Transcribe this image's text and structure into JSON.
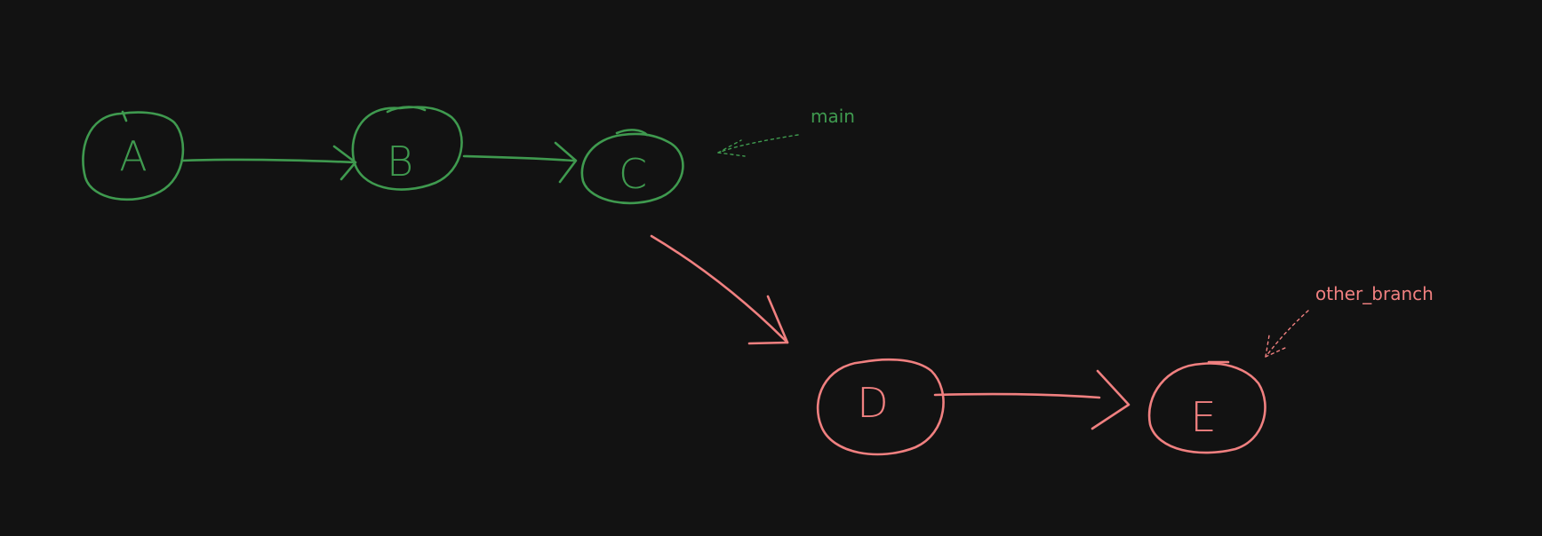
{
  "colors": {
    "background": "#121212",
    "main_branch": "#3f9a4f",
    "other_branch": "#f08080"
  },
  "nodes": [
    {
      "id": "A",
      "label": "A",
      "branch": "main"
    },
    {
      "id": "B",
      "label": "B",
      "branch": "main"
    },
    {
      "id": "C",
      "label": "C",
      "branch": "main"
    },
    {
      "id": "D",
      "label": "D",
      "branch": "other"
    },
    {
      "id": "E",
      "label": "E",
      "branch": "other"
    }
  ],
  "edges": [
    {
      "from": "A",
      "to": "B"
    },
    {
      "from": "B",
      "to": "C"
    },
    {
      "from": "C",
      "to": "D"
    },
    {
      "from": "D",
      "to": "E"
    }
  ],
  "refs": {
    "main": {
      "label": "main",
      "points_to": "C"
    },
    "other_branch": {
      "label": "other_branch",
      "points_to": "E"
    }
  }
}
